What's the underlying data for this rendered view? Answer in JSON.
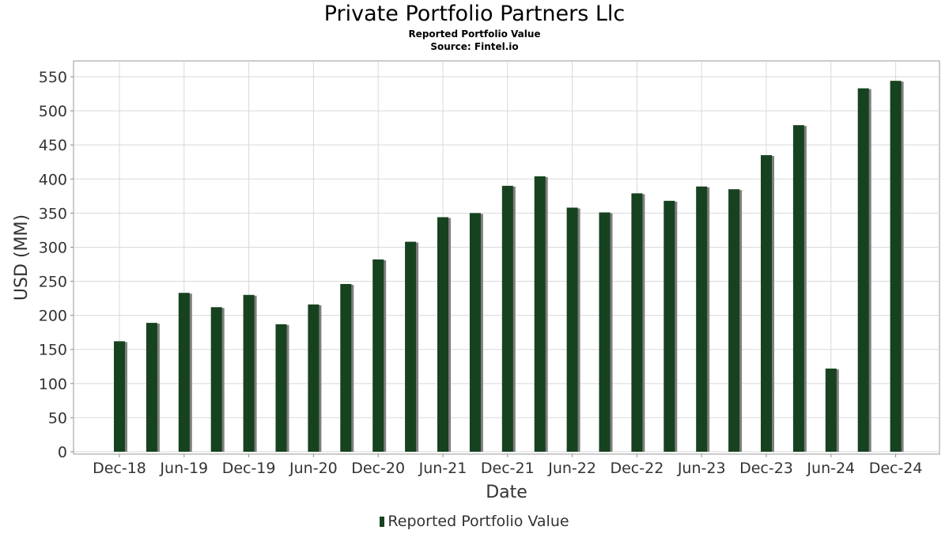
{
  "title": "Private Portfolio Partners Llc",
  "subtitle": "Reported Portfolio Value",
  "source": "Source: Fintel.io",
  "colors": {
    "bar": "#17421f",
    "shadow": "#7f7f7f",
    "grid": "#d9d9d9",
    "axis": "#888888"
  },
  "chart_data": {
    "type": "bar",
    "xlabel": "Date",
    "ylabel": "USD (MM)",
    "ylim": [
      0,
      570
    ],
    "yticks": [
      0,
      50,
      100,
      150,
      200,
      250,
      300,
      350,
      400,
      450,
      500,
      550
    ],
    "grid": true,
    "legend_position": "bottom",
    "x_tick_labels": [
      "Dec-18",
      "Jun-19",
      "Dec-19",
      "Jun-20",
      "Dec-20",
      "Jun-21",
      "Dec-21",
      "Jun-22",
      "Dec-22",
      "Jun-23",
      "Dec-23",
      "Jun-24",
      "Dec-24"
    ],
    "series": [
      {
        "name": "Reported Portfolio Value",
        "categories": [
          "Dec-18",
          "Mar-19",
          "Jun-19",
          "Sep-19",
          "Dec-19",
          "Mar-20",
          "Jun-20",
          "Sep-20",
          "Dec-20",
          "Mar-21",
          "Jun-21",
          "Sep-21",
          "Dec-21",
          "Mar-22",
          "Jun-22",
          "Sep-22",
          "Dec-22",
          "Mar-23",
          "Jun-23",
          "Sep-23",
          "Dec-23",
          "Mar-24",
          "Jun-24",
          "Sep-24",
          "Dec-24"
        ],
        "values": [
          162,
          189,
          233,
          212,
          230,
          187,
          216,
          246,
          282,
          308,
          344,
          350,
          390,
          404,
          358,
          351,
          379,
          368,
          389,
          385,
          435,
          479,
          122,
          533,
          544
        ]
      }
    ]
  }
}
